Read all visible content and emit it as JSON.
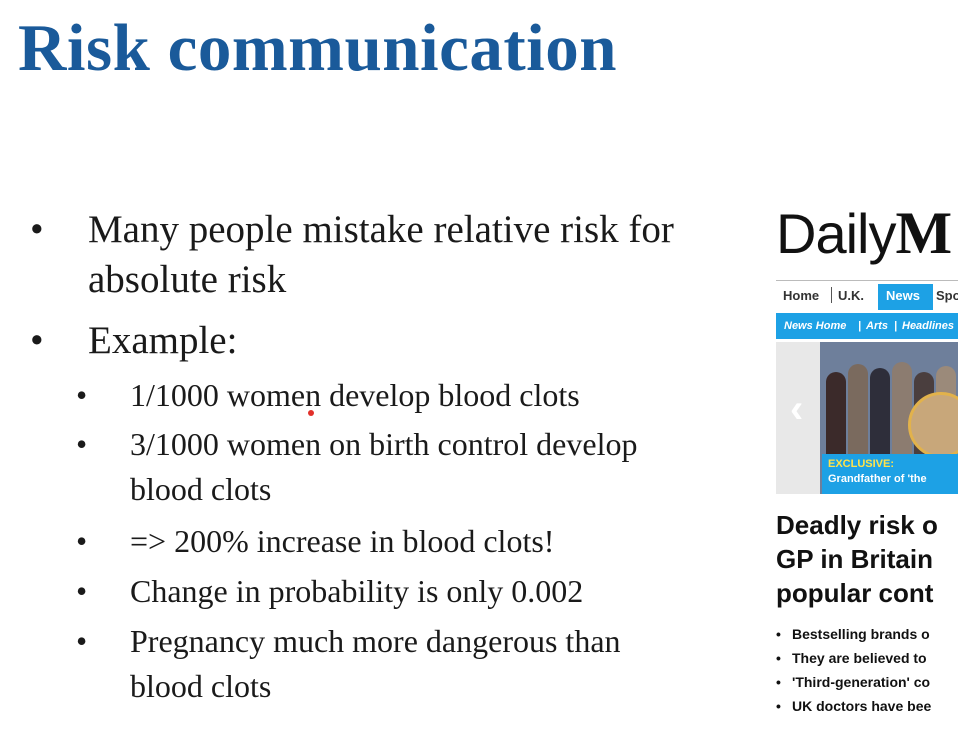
{
  "slide": {
    "title": "Risk communication",
    "bullets": [
      {
        "lines": [
          "Many people mistake relative risk for",
          "absolute risk"
        ]
      },
      {
        "lines": [
          "Example:"
        ]
      }
    ],
    "sub_bullets": [
      {
        "lines": [
          "1/1000 women develop blood clots"
        ]
      },
      {
        "lines": [
          "3/1000 women on birth control develop",
          "blood clots"
        ]
      },
      {
        "lines": [
          "=> 200% increase in blood clots!"
        ]
      },
      {
        "lines": [
          "Change in probability is only 0.002"
        ]
      },
      {
        "lines": [
          "Pregnancy much more dangerous than",
          "blood clots"
        ]
      }
    ]
  },
  "newspaper": {
    "logo": "Daily",
    "logo_mark": "M",
    "nav": [
      "Home",
      "U.K.",
      "News",
      "Spo"
    ],
    "subnav": [
      "News Home",
      "Arts",
      "Headlines"
    ],
    "caption": {
      "label": "EXCLUSIVE:",
      "text": "Grandfather of 'the"
    },
    "headline": [
      "Deadly risk o",
      "GP in Britain",
      "popular cont"
    ],
    "bullets": [
      "Bestselling brands o",
      "They are believed to",
      "'Third-generation' co",
      "UK doctors have bee"
    ]
  },
  "colors": {
    "title": "#1a5a9a",
    "accent": "#1da1e5",
    "laser": "#e2302a"
  }
}
